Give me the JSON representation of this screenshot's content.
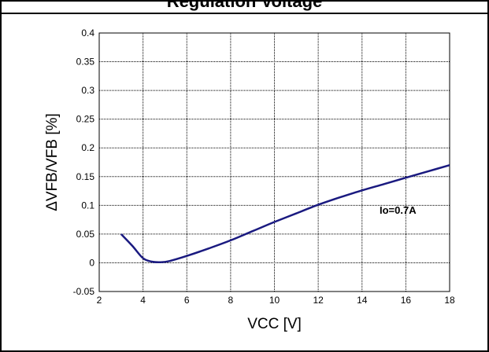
{
  "header": {
    "text": "Regulation Voltage"
  },
  "chart_data": {
    "type": "line",
    "title": "",
    "xlabel": "VCC [V]",
    "ylabel": "ΔVFB/VFB [%]",
    "xlim": [
      2,
      18
    ],
    "ylim": [
      -0.05,
      0.4
    ],
    "xticks": [
      2,
      4,
      6,
      8,
      10,
      12,
      14,
      16,
      18
    ],
    "yticks": [
      -0.05,
      0,
      0.05,
      0.1,
      0.15,
      0.2,
      0.25,
      0.3,
      0.35,
      0.4
    ],
    "xtick_labels": [
      "2",
      "4",
      "6",
      "8",
      "10",
      "12",
      "14",
      "16",
      "18"
    ],
    "ytick_labels": [
      "-0.05",
      "0",
      "0.05",
      "0.1",
      "0.15",
      "0.2",
      "0.25",
      "0.3",
      "0.35",
      "0.4"
    ],
    "grid": true,
    "line_color": "#1a1a80",
    "annotation": "Io=0.7A",
    "series": [
      {
        "x": [
          3.0,
          3.5,
          4.0,
          4.4,
          4.8,
          5.2,
          6.0,
          7.0,
          8.0,
          9.0,
          10.0,
          11.0,
          12.0,
          13.0,
          14.0,
          15.0,
          16.0,
          17.0,
          18.0
        ],
        "y": [
          0.05,
          0.03,
          0.008,
          0.002,
          0.001,
          0.003,
          0.012,
          0.025,
          0.039,
          0.055,
          0.071,
          0.086,
          0.101,
          0.114,
          0.126,
          0.137,
          0.148,
          0.159,
          0.17
        ]
      }
    ]
  }
}
